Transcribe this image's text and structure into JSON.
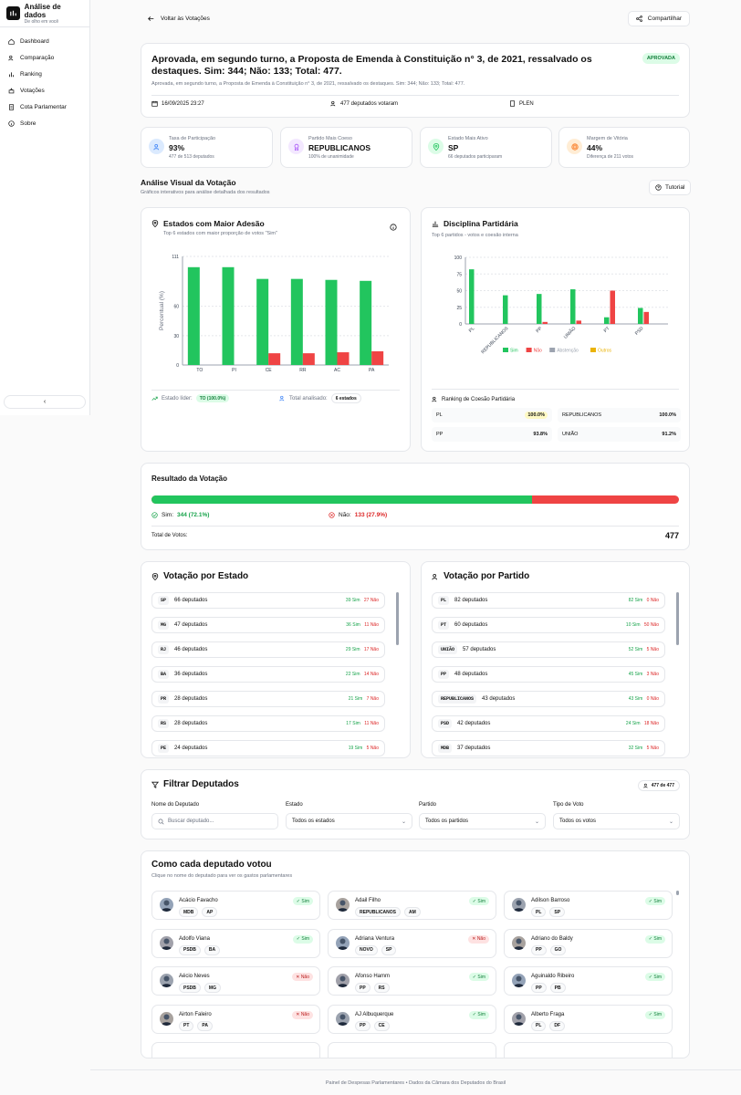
{
  "brand": {
    "title": "Análise de dados",
    "subtitle": "De olho em você"
  },
  "nav": [
    "Dashboard",
    "Comparação",
    "Ranking",
    "Votações",
    "Cota Parlamentar",
    "Sobre"
  ],
  "topbar": {
    "back": "Voltar às Votações",
    "share": "Compartilhar"
  },
  "vote": {
    "title": "Aprovada, em segundo turno, a Proposta de Emenda à Constituição n° 3, de 2021, ressalvado os destaques. Sim: 344; Não: 133; Total: 477.",
    "description": "Aprovada, em segundo turno, a Proposta de Emenda à Constituição n° 3, de 2021, ressalvado os destaques. Sim: 344; Não: 133; Total: 477.",
    "status": "APROVADA",
    "date": "16/09/2025 23:27",
    "voters": "477 deputados votaram",
    "organ": "PLEN"
  },
  "stats": [
    {
      "label": "Taxa de Participação",
      "value": "93%",
      "sub": "477 de 513 deputados",
      "color": "#3b82f6",
      "bg": "#dbeafe"
    },
    {
      "label": "Partido Mais Coeso",
      "value": "REPUBLICANOS",
      "sub": "100% de unanimidade",
      "color": "#a855f7",
      "bg": "#f3e8ff"
    },
    {
      "label": "Estado Mais Ativo",
      "value": "SP",
      "sub": "66 deputados participaram",
      "color": "#22c55e",
      "bg": "#dcfce7"
    },
    {
      "label": "Margem de Vitória",
      "value": "44%",
      "sub": "Diferença de 211 votos",
      "color": "#f97316",
      "bg": "#ffedd5"
    }
  ],
  "visual": {
    "title": "Análise Visual da Votação",
    "subtitle": "Gráficos interativos para análise detalhada dos resultados",
    "tutorial": "Tutorial"
  },
  "states_chart": {
    "title": "Estados com Maior Adesão",
    "subtitle": "Top 6 estados com maior proporção de votos \"Sim\"",
    "leader_label": "Estado líder:",
    "leader_value": "TO (100.0%)",
    "total_label": "Total analisado:",
    "total_value": "6 estados"
  },
  "party_chart": {
    "title": "Disciplina Partidária",
    "subtitle": "Top 6 partidos - votos e coesão interna",
    "ranking_title": "Ranking de Coesão Partidária",
    "ranking": [
      {
        "party": "PL",
        "value": "100.0%"
      },
      {
        "party": "REPUBLICANOS",
        "value": "100.0%"
      },
      {
        "party": "PP",
        "value": "93.8%"
      },
      {
        "party": "UNIÃO",
        "value": "91.2%"
      }
    ]
  },
  "chart_data": [
    {
      "type": "bar",
      "title": "Estados com Maior Adesão",
      "ylabel": "Percentual (%)",
      "categories": [
        "TO",
        "PI",
        "CE",
        "RR",
        "AC",
        "PA"
      ],
      "yticks": [
        0,
        30,
        60,
        111
      ],
      "ylim": [
        0,
        111
      ],
      "series": [
        {
          "values": [
            100,
            100,
            88,
            88,
            87,
            86
          ],
          "color": "#22c55e"
        },
        {
          "values": [
            0,
            0,
            12,
            12,
            13,
            14
          ],
          "color": "#ef4444"
        }
      ]
    },
    {
      "type": "bar",
      "title": "Disciplina Partidária",
      "categories": [
        "PL",
        "REPUBLICANOS",
        "PP",
        "UNIÃO",
        "PT",
        "PSD"
      ],
      "yticks": [
        0,
        25,
        50,
        75,
        100
      ],
      "ylim": [
        0,
        100
      ],
      "legend": "bottom",
      "series": [
        {
          "name": "Sim",
          "values": [
            82,
            43,
            45,
            52,
            10,
            24
          ],
          "color": "#22c55e"
        },
        {
          "name": "Não",
          "values": [
            0,
            0,
            3,
            5,
            50,
            18
          ],
          "color": "#ef4444"
        },
        {
          "name": "Abstenção",
          "values": [
            0,
            0,
            0,
            0,
            0,
            0
          ],
          "color": "#9ca3af"
        },
        {
          "name": "Outros",
          "values": [
            0,
            0,
            0,
            0,
            0,
            0
          ],
          "color": "#eab308"
        }
      ]
    }
  ],
  "result": {
    "title": "Resultado da Votação",
    "yes_fraction": 0.721,
    "yes_label": "Sim:",
    "yes_value": "344 (72.1%)",
    "no_label": "Não:",
    "no_value": "133 (27.9%)",
    "total_label": "Total de Votos:",
    "total_value": "477"
  },
  "by_state": {
    "title": "Votação por Estado",
    "rows": [
      {
        "code": "SP",
        "count": "66 deputados",
        "yes": "39 Sim",
        "no": "27 Não"
      },
      {
        "code": "MG",
        "count": "47 deputados",
        "yes": "36 Sim",
        "no": "11 Não"
      },
      {
        "code": "RJ",
        "count": "46 deputados",
        "yes": "29 Sim",
        "no": "17 Não"
      },
      {
        "code": "BA",
        "count": "36 deputados",
        "yes": "22 Sim",
        "no": "14 Não"
      },
      {
        "code": "PR",
        "count": "28 deputados",
        "yes": "21 Sim",
        "no": "7 Não"
      },
      {
        "code": "RS",
        "count": "28 deputados",
        "yes": "17 Sim",
        "no": "11 Não"
      },
      {
        "code": "PE",
        "count": "24 deputados",
        "yes": "19 Sim",
        "no": "5 Não"
      }
    ]
  },
  "by_party": {
    "title": "Votação por Partido",
    "rows": [
      {
        "code": "PL",
        "count": "82 deputados",
        "yes": "82 Sim",
        "no": "0 Não"
      },
      {
        "code": "PT",
        "count": "60 deputados",
        "yes": "10 Sim",
        "no": "50 Não"
      },
      {
        "code": "UNIÃO",
        "count": "57 deputados",
        "yes": "52 Sim",
        "no": "5 Não"
      },
      {
        "code": "PP",
        "count": "48 deputados",
        "yes": "45 Sim",
        "no": "3 Não"
      },
      {
        "code": "REPUBLICANOS",
        "count": "43 deputados",
        "yes": "43 Sim",
        "no": "0 Não"
      },
      {
        "code": "PSD",
        "count": "42 deputados",
        "yes": "24 Sim",
        "no": "18 Não"
      },
      {
        "code": "MDB",
        "count": "37 deputados",
        "yes": "32 Sim",
        "no": "5 Não"
      }
    ]
  },
  "filter": {
    "title": "Filtrar Deputados",
    "count": "477 de 477",
    "name_label": "Nome do Deputado",
    "name_placeholder": "Buscar deputado...",
    "state_label": "Estado",
    "state_value": "Todos os estados",
    "party_label": "Partido",
    "party_value": "Todos os partidos",
    "vote_label": "Tipo de Voto",
    "vote_value": "Todos os votos"
  },
  "deputies": {
    "title": "Como cada deputado votou",
    "subtitle": "Clique no nome do deputado para ver os gastos parlamentares",
    "list": [
      {
        "name": "Acácio Favacho",
        "party": "MDB",
        "state": "AP",
        "vote": "Sim"
      },
      {
        "name": "Adail Filho",
        "party": "REPUBLICANOS",
        "state": "AM",
        "vote": "Sim"
      },
      {
        "name": "Adilson Barroso",
        "party": "PL",
        "state": "SP",
        "vote": "Sim"
      },
      {
        "name": "Adolfo Viana",
        "party": "PSDB",
        "state": "BA",
        "vote": "Sim"
      },
      {
        "name": "Adriana Ventura",
        "party": "NOVO",
        "state": "SP",
        "vote": "Não"
      },
      {
        "name": "Adriano do Baldy",
        "party": "PP",
        "state": "GO",
        "vote": "Sim"
      },
      {
        "name": "Aécio Neves",
        "party": "PSDB",
        "state": "MG",
        "vote": "Não"
      },
      {
        "name": "Afonso Hamm",
        "party": "PP",
        "state": "RS",
        "vote": "Sim"
      },
      {
        "name": "Aguinaldo Ribeiro",
        "party": "PP",
        "state": "PB",
        "vote": "Sim"
      },
      {
        "name": "Airton Faleiro",
        "party": "PT",
        "state": "PA",
        "vote": "Não"
      },
      {
        "name": "AJ Albuquerque",
        "party": "PP",
        "state": "CE",
        "vote": "Sim"
      },
      {
        "name": "Alberto Fraga",
        "party": "PL",
        "state": "DF",
        "vote": "Sim"
      }
    ]
  },
  "footer": "Painel de Despesas Parlamentares • Dados da Câmara dos Deputados do Brasil"
}
